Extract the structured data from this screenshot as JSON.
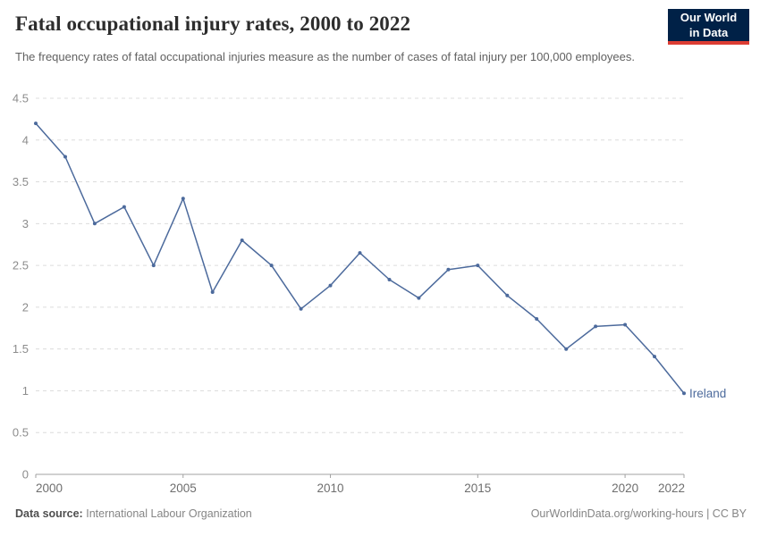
{
  "header": {
    "title": "Fatal occupational injury rates, 2000 to 2022",
    "subtitle": "The frequency rates of fatal occupational injuries measure as the number of cases of fatal injury per 100,000 employees.",
    "logo": {
      "line1": "Our World",
      "line2": "in Data",
      "bg_color": "#002147",
      "stripe_color": "#dc3d33"
    }
  },
  "chart_data": {
    "type": "line",
    "title": "Fatal occupational injury rates, 2000 to 2022",
    "xlabel": "",
    "ylabel": "",
    "xlim": [
      2000,
      2022
    ],
    "ylim": [
      0,
      4.5
    ],
    "grid": "horizontal-dashed",
    "legend_position": "end-of-line-label",
    "x_ticks": [
      2000,
      2005,
      2010,
      2015,
      2020,
      2022
    ],
    "y_ticks": [
      0,
      0.5,
      1,
      1.5,
      2,
      2.5,
      3,
      3.5,
      4,
      4.5
    ],
    "series": [
      {
        "name": "Ireland",
        "color": "#4c6a9c",
        "x": [
          2000,
          2001,
          2002,
          2003,
          2004,
          2005,
          2006,
          2007,
          2008,
          2009,
          2010,
          2011,
          2012,
          2013,
          2014,
          2015,
          2016,
          2017,
          2018,
          2019,
          2020,
          2021,
          2022
        ],
        "values": [
          4.2,
          3.8,
          3.0,
          3.2,
          2.5,
          3.3,
          2.18,
          2.8,
          2.5,
          1.98,
          2.26,
          2.65,
          2.33,
          2.11,
          2.45,
          2.5,
          2.14,
          1.86,
          1.5,
          1.77,
          1.79,
          1.41,
          0.97
        ]
      }
    ],
    "colors": {
      "gridline": "#dcdcdc",
      "axis": "#a1a1a1",
      "y_tick_label": "#8c8c8c",
      "x_tick_label": "#6e6e6e"
    }
  },
  "footer": {
    "source_label": "Data source:",
    "source_value": "International Labour Organization",
    "credit": "OurWorldinData.org/working-hours | CC BY"
  }
}
